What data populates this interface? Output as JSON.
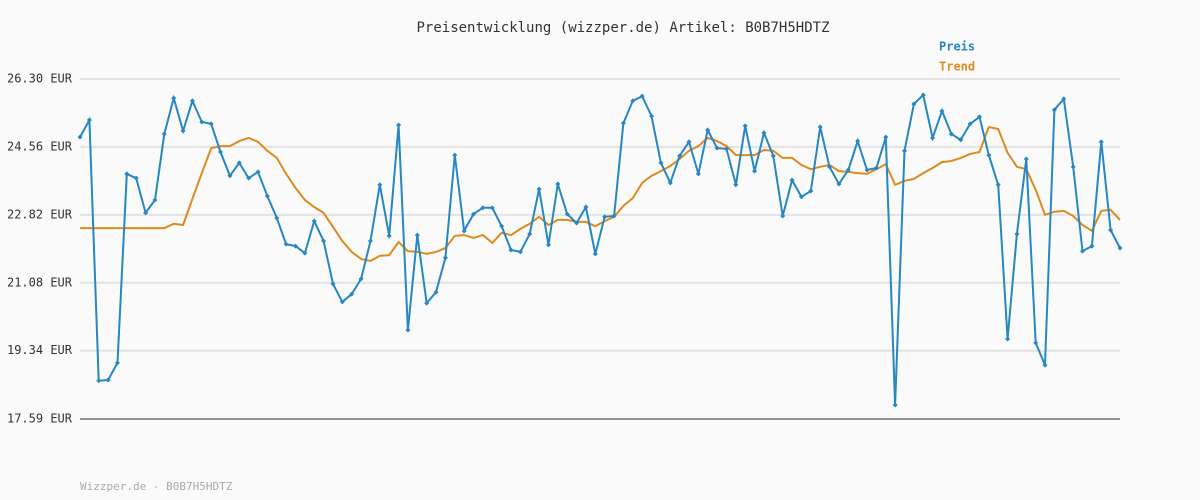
{
  "chart_data": {
    "type": "line",
    "title": "Preisentwicklung (wizzper.de) Artikel: B0B7H5HDTZ",
    "footer": "Wizzper.de - B0B7H5HDTZ",
    "categories": [
      null,
      null,
      null,
      null,
      null,
      null,
      null,
      null,
      null,
      null,
      null,
      null,
      null,
      null,
      null,
      null,
      null,
      null,
      null,
      null,
      null,
      null,
      null,
      null,
      null,
      null,
      null,
      null,
      null,
      null,
      null,
      null,
      null,
      null,
      null,
      null,
      null,
      null,
      null,
      null,
      null,
      null,
      null,
      null,
      null,
      null,
      null,
      null,
      null,
      null,
      null,
      null,
      null,
      null,
      null,
      null,
      null,
      null,
      null,
      null,
      null,
      null,
      null,
      null,
      null,
      null,
      null,
      null,
      null,
      null,
      null,
      null,
      null,
      null,
      null,
      null,
      null,
      null,
      null,
      null,
      null,
      null,
      null,
      null,
      null,
      null,
      null,
      null,
      null,
      null,
      null,
      null,
      null,
      null,
      null,
      null,
      null,
      null,
      null,
      null,
      null,
      null,
      null,
      null,
      null,
      null,
      null,
      null,
      null,
      null,
      null,
      null
    ],
    "series": [
      {
        "name": "Preis",
        "color": "#2687c3",
        "markers": true,
        "values": [
          24.81,
          25.25,
          18.57,
          18.59,
          19.03,
          23.87,
          23.76,
          22.87,
          23.2,
          24.89,
          25.81,
          24.97,
          25.74,
          25.2,
          25.15,
          24.43,
          23.82,
          24.15,
          23.76,
          23.92,
          23.3,
          22.74,
          22.07,
          22.02,
          21.84,
          22.66,
          22.15,
          21.05,
          20.59,
          20.79,
          21.18,
          22.15,
          23.59,
          22.28,
          25.12,
          19.87,
          22.3,
          20.56,
          20.84,
          21.72,
          24.35,
          22.41,
          22.84,
          23.0,
          23.0,
          22.53,
          21.92,
          21.87,
          22.33,
          23.48,
          22.05,
          23.61,
          22.84,
          22.61,
          23.02,
          21.82,
          22.77,
          22.79,
          25.17,
          25.74,
          25.86,
          25.35,
          24.15,
          23.64,
          24.33,
          24.69,
          23.87,
          24.99,
          24.53,
          24.51,
          23.59,
          25.1,
          23.94,
          24.92,
          24.33,
          22.79,
          23.71,
          23.28,
          23.43,
          25.07,
          24.05,
          23.61,
          23.97,
          24.71,
          23.97,
          24.02,
          24.81,
          17.95,
          24.46,
          25.66,
          25.89,
          24.79,
          25.48,
          24.89,
          24.74,
          25.15,
          25.33,
          24.35,
          23.59,
          19.64,
          22.33,
          24.25,
          19.54,
          18.97,
          25.51,
          25.79,
          24.05,
          21.89,
          22.02,
          24.69,
          22.43,
          21.97
        ]
      },
      {
        "name": "Trend",
        "color": "#dd8a1e",
        "markers": false,
        "values": [
          22.48,
          22.48,
          22.48,
          22.48,
          22.48,
          22.48,
          22.48,
          22.48,
          22.48,
          22.48,
          22.59,
          22.56,
          23.23,
          23.89,
          24.53,
          24.58,
          24.58,
          24.71,
          24.79,
          24.69,
          24.46,
          24.28,
          23.87,
          23.51,
          23.2,
          23.02,
          22.87,
          22.51,
          22.15,
          21.87,
          21.69,
          21.64,
          21.77,
          21.79,
          22.12,
          21.89,
          21.87,
          21.82,
          21.87,
          21.97,
          22.28,
          22.3,
          22.23,
          22.3,
          22.1,
          22.36,
          22.3,
          22.46,
          22.59,
          22.77,
          22.56,
          22.69,
          22.69,
          22.64,
          22.64,
          22.53,
          22.66,
          22.77,
          23.05,
          23.25,
          23.64,
          23.82,
          23.94,
          24.07,
          24.25,
          24.46,
          24.58,
          24.79,
          24.71,
          24.58,
          24.35,
          24.35,
          24.35,
          24.48,
          24.46,
          24.28,
          24.28,
          24.1,
          23.99,
          24.05,
          24.1,
          23.94,
          23.92,
          23.89,
          23.87,
          23.99,
          24.12,
          23.59,
          23.69,
          23.74,
          23.89,
          24.02,
          24.17,
          24.2,
          24.28,
          24.38,
          24.43,
          25.07,
          25.02,
          24.41,
          24.05,
          23.99,
          23.46,
          22.82,
          22.9,
          22.92,
          22.79,
          22.56,
          22.41,
          22.92,
          22.95,
          22.69
        ]
      }
    ],
    "ylim": [
      17.59,
      26.3
    ],
    "yticks": [
      {
        "value": 17.59,
        "label": "17.59 EUR"
      },
      {
        "value": 19.34,
        "label": "19.34 EUR"
      },
      {
        "value": 21.08,
        "label": "21.08 EUR"
      },
      {
        "value": 22.82,
        "label": "22.82 EUR"
      },
      {
        "value": 24.56,
        "label": "24.56 EUR"
      },
      {
        "value": 26.3,
        "label": "26.30 EUR"
      }
    ],
    "grid": true,
    "legend": "top-right"
  }
}
